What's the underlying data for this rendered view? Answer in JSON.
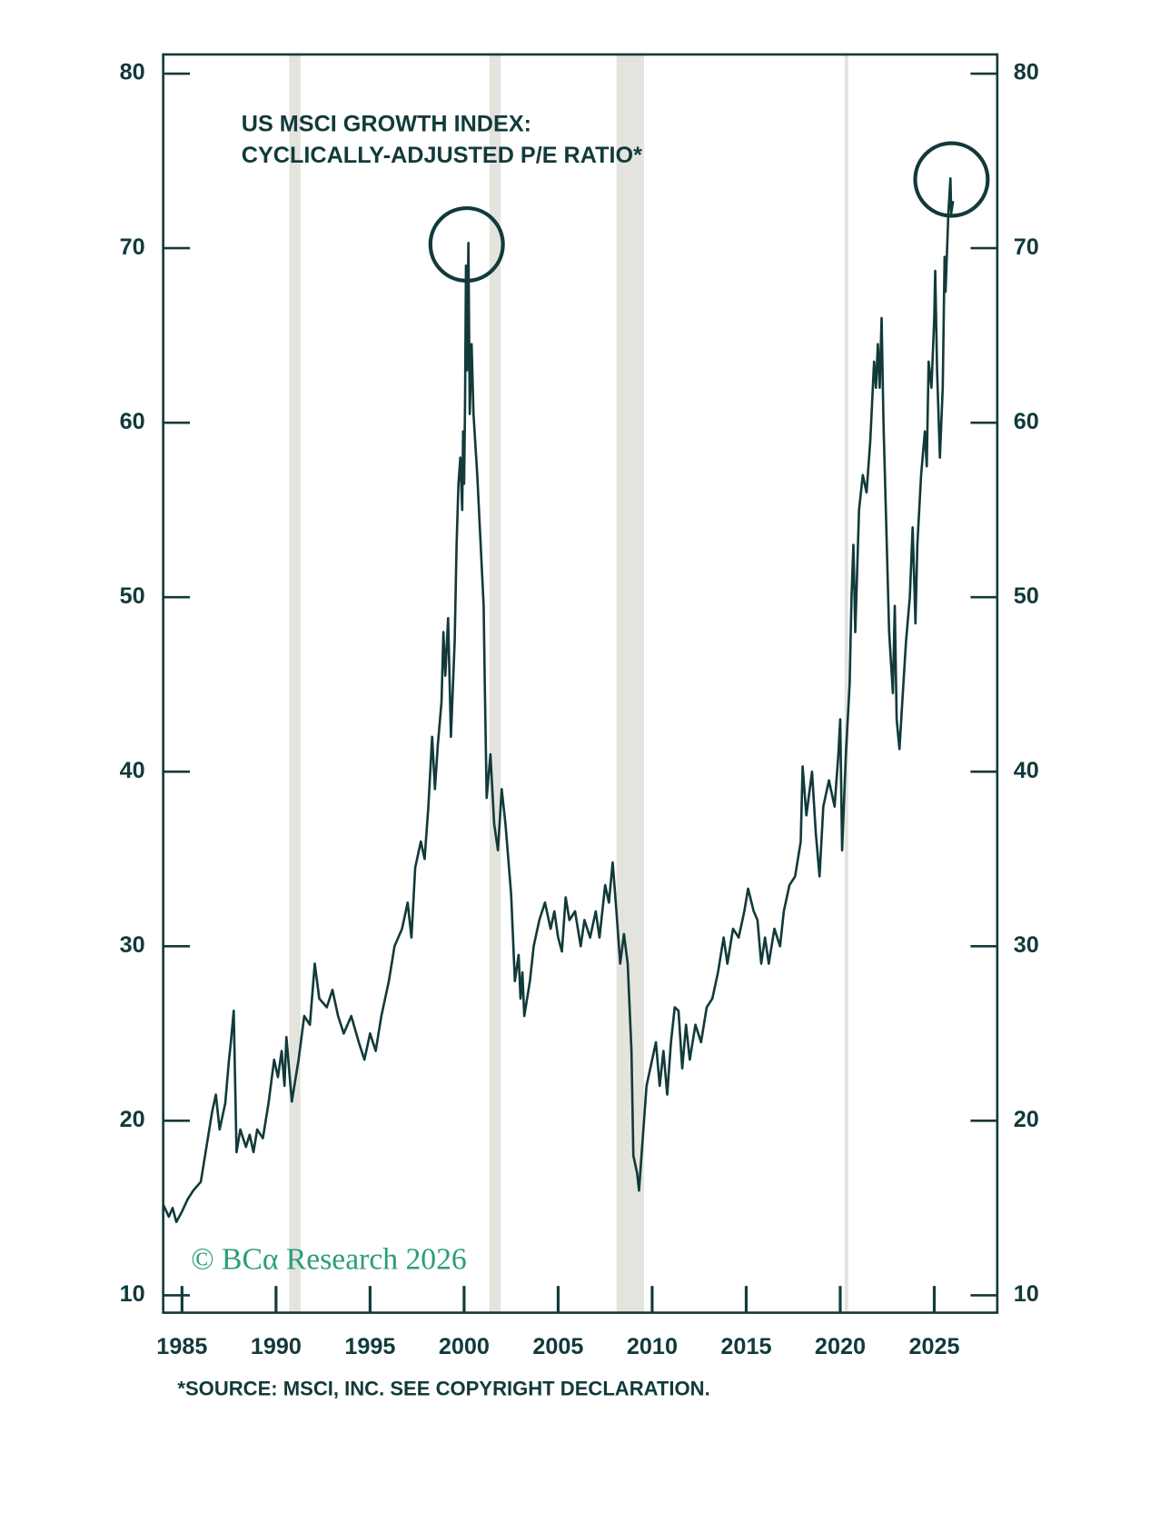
{
  "chart_data": {
    "type": "line",
    "title_lines": [
      "US MSCI GROWTH INDEX:",
      "CYCLICALLY-ADJUSTED P/E RATIO*"
    ],
    "footnote": "*SOURCE: MSCI, INC. SEE COPYRIGHT DECLARATION.",
    "watermark": "© BCα Research 2026",
    "color": "#123a3a",
    "band_color": "#e4e4de",
    "shaded_periods": [
      [
        1990.7,
        1991.3
      ],
      [
        2001.35,
        2001.95
      ],
      [
        2008.1,
        2009.57
      ],
      [
        2020.23,
        2020.43
      ]
    ],
    "x": [
      1984.0,
      1984.3,
      1984.5,
      1984.7,
      1985.0,
      1985.3,
      1985.6,
      1986.0,
      1986.3,
      1986.6,
      1986.8,
      1987.0,
      1987.3,
      1987.5,
      1987.6,
      1987.75,
      1987.9,
      1988.1,
      1988.4,
      1988.6,
      1988.8,
      1989.0,
      1989.3,
      1989.6,
      1989.9,
      1990.1,
      1990.3,
      1990.45,
      1990.55,
      1990.84,
      1991.2,
      1991.5,
      1991.8,
      1992.06,
      1992.3,
      1992.7,
      1993.0,
      1993.3,
      1993.6,
      1994.0,
      1994.4,
      1994.7,
      1995.0,
      1995.3,
      1995.6,
      1996.0,
      1996.3,
      1996.7,
      1997.0,
      1997.2,
      1997.4,
      1997.7,
      1997.9,
      1998.1,
      1998.3,
      1998.45,
      1998.6,
      1998.8,
      1998.9,
      1999.0,
      1999.15,
      1999.3,
      1999.5,
      1999.6,
      1999.7,
      1999.8,
      1999.9,
      1999.95,
      2000.0,
      2000.05,
      2000.1,
      2000.15,
      2000.23,
      2000.3,
      2000.4,
      2000.5,
      2000.7,
      2001.04,
      2001.1,
      2001.2,
      2001.4,
      2001.6,
      2001.8,
      2002.0,
      2002.2,
      2002.5,
      2002.7,
      2002.9,
      2003.0,
      2003.1,
      2003.2,
      2003.5,
      2003.7,
      2004.0,
      2004.3,
      2004.6,
      2004.8,
      2005.0,
      2005.2,
      2005.4,
      2005.6,
      2005.9,
      2006.2,
      2006.4,
      2006.7,
      2007.0,
      2007.2,
      2007.5,
      2007.7,
      2007.9,
      2008.1,
      2008.3,
      2008.5,
      2008.7,
      2008.9,
      2009.0,
      2009.2,
      2009.3,
      2009.5,
      2009.7,
      2009.9,
      2010.2,
      2010.4,
      2010.6,
      2010.8,
      2011.0,
      2011.2,
      2011.4,
      2011.6,
      2011.8,
      2012.0,
      2012.3,
      2012.6,
      2012.9,
      2013.2,
      2013.5,
      2013.8,
      2014.0,
      2014.3,
      2014.6,
      2014.9,
      2015.1,
      2015.4,
      2015.6,
      2015.8,
      2016.0,
      2016.2,
      2016.5,
      2016.8,
      2017.0,
      2017.3,
      2017.6,
      2017.9,
      2018.0,
      2018.2,
      2018.5,
      2018.7,
      2018.9,
      2019.1,
      2019.4,
      2019.7,
      2019.9,
      2020.0,
      2020.1,
      2020.3,
      2020.5,
      2020.6,
      2020.7,
      2020.8,
      2021.0,
      2021.2,
      2021.4,
      2021.6,
      2021.8,
      2021.9,
      2022.0,
      2022.1,
      2022.2,
      2022.3,
      2022.4,
      2022.6,
      2022.8,
      2022.9,
      2023.0,
      2023.15,
      2023.3,
      2023.5,
      2023.7,
      2023.85,
      2024.0,
      2024.1,
      2024.3,
      2024.5,
      2024.6,
      2024.7,
      2024.85,
      2025.0,
      2025.05,
      2025.15,
      2025.3,
      2025.45,
      2025.55,
      2025.6,
      2025.75,
      2025.86,
      2025.9,
      2026.0
    ],
    "values": [
      15.2,
      14.5,
      15.0,
      14.2,
      14.8,
      15.5,
      16.0,
      16.5,
      18.5,
      20.5,
      21.5,
      19.5,
      21.0,
      23.5,
      24.5,
      26.3,
      18.2,
      19.5,
      18.5,
      19.2,
      18.2,
      19.5,
      19.0,
      21.0,
      23.5,
      22.5,
      24.0,
      22.0,
      24.8,
      21.1,
      23.5,
      26.0,
      25.5,
      29.0,
      27.0,
      26.5,
      27.5,
      26.0,
      25.0,
      26.0,
      24.5,
      23.5,
      25.0,
      24.0,
      26.0,
      28.0,
      30.0,
      31.0,
      32.5,
      30.5,
      34.5,
      36.0,
      35.0,
      38.0,
      42.0,
      39.0,
      41.5,
      44.0,
      48.0,
      45.5,
      48.8,
      42.0,
      47.5,
      53.0,
      56.5,
      58.0,
      55.0,
      59.5,
      56.5,
      61.0,
      69.0,
      63.0,
      70.3,
      60.5,
      64.5,
      60.5,
      57.0,
      49.5,
      45.0,
      38.5,
      41.0,
      37.0,
      35.5,
      39.0,
      37.0,
      33.0,
      28.0,
      29.5,
      27.0,
      28.5,
      26.0,
      28.0,
      30.0,
      31.5,
      32.5,
      31.0,
      32.0,
      30.5,
      29.7,
      32.8,
      31.5,
      32.0,
      30.0,
      31.5,
      30.5,
      32.0,
      30.5,
      33.5,
      32.5,
      34.8,
      32.0,
      29.0,
      30.7,
      29.0,
      24.0,
      18.0,
      17.0,
      16.0,
      19.0,
      22.0,
      23.0,
      24.5,
      22.0,
      24.0,
      21.5,
      24.5,
      26.5,
      26.3,
      23.0,
      25.5,
      23.5,
      25.5,
      24.5,
      26.5,
      27.0,
      28.5,
      30.5,
      29.0,
      31.0,
      30.5,
      32.0,
      33.3,
      32.0,
      31.5,
      29.0,
      30.5,
      29.0,
      31.0,
      30.0,
      32.0,
      33.5,
      34.0,
      36.0,
      40.3,
      37.5,
      40.0,
      36.5,
      34.0,
      38.0,
      39.5,
      38.0,
      41.0,
      43.0,
      35.5,
      41.0,
      45.0,
      50.0,
      53.0,
      48.0,
      55.0,
      57.0,
      56.0,
      59.0,
      63.5,
      62.0,
      64.5,
      62.0,
      66.0,
      60.0,
      56.0,
      48.0,
      44.5,
      49.5,
      43.0,
      41.3,
      44.0,
      47.5,
      50.0,
      54.0,
      48.5,
      53.0,
      57.0,
      59.5,
      57.5,
      63.5,
      62.0,
      66.0,
      68.7,
      63.0,
      58.0,
      62.0,
      69.5,
      67.5,
      72.0,
      74.0,
      72.0,
      72.7
    ],
    "xlim": [
      1984.0,
      2028.35
    ],
    "ylim": [
      9.0,
      81.1
    ],
    "xticks": [
      1985,
      1990,
      1995,
      2000,
      2005,
      2010,
      2015,
      2020,
      2025
    ],
    "yticks": [
      10,
      20,
      30,
      40,
      50,
      60,
      70,
      80
    ]
  }
}
